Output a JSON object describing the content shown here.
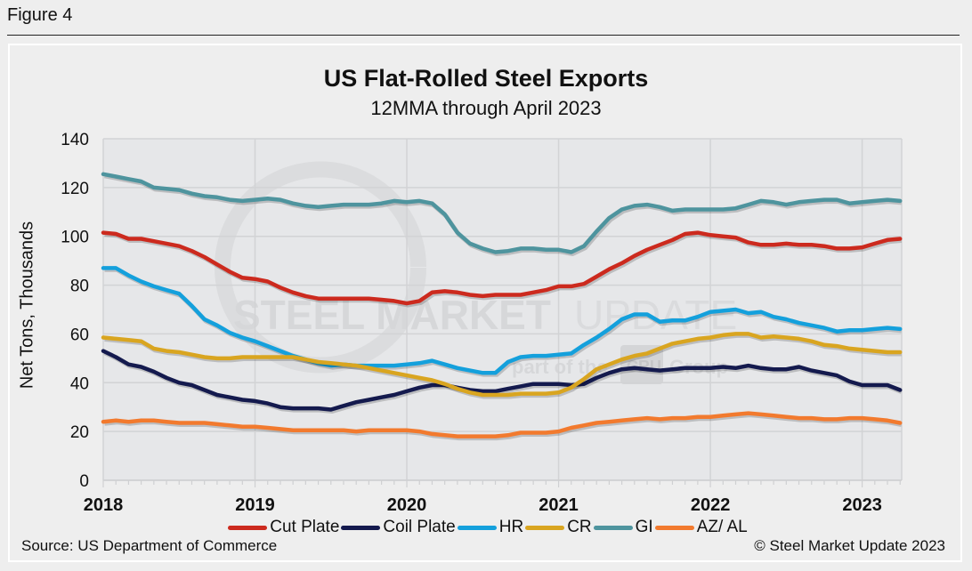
{
  "figure_label": "Figure 4",
  "source": "Source: US Department of Commerce",
  "copyright": "© Steel Market Update 2023",
  "watermark": {
    "main": "STEEL MARKET",
    "light": "UPDATE",
    "sub": "part of the",
    "badge": "CRU",
    "group": "Group"
  },
  "chart_data": {
    "type": "line",
    "title": "US Flat-Rolled Steel Exports",
    "subtitle": "12MMA through April 2023",
    "xlabel": "",
    "ylabel": "Net Tons, Thousands",
    "ylim": [
      0,
      140
    ],
    "yticks": [
      0,
      20,
      40,
      60,
      80,
      100,
      120,
      140
    ],
    "xtick_labels": [
      "2018",
      "2019",
      "2020",
      "2021",
      "2022",
      "2023"
    ],
    "x_start": "Jan 2018",
    "x_end": "Apr 2023",
    "frequency": "monthly",
    "grid": true,
    "legend_position": "bottom",
    "series": [
      {
        "name": "Cut Plate",
        "color": "#cc2a1e",
        "values": [
          101.5,
          101,
          99,
          99,
          98,
          97,
          96,
          94,
          91.5,
          88.5,
          85.5,
          83,
          82.5,
          81.5,
          79,
          77,
          75.5,
          74.5,
          74.5,
          74.5,
          74.5,
          74.5,
          74,
          73.5,
          72.5,
          73.5,
          77,
          77.5,
          77,
          76,
          75.5,
          76,
          76,
          76,
          77,
          78,
          79.5,
          79.5,
          80.5,
          83.5,
          86.5,
          89,
          92,
          94.5,
          96.5,
          98.5,
          101,
          101.5,
          100.5,
          100,
          99.5,
          97.5,
          96.5,
          96.5,
          97,
          96.5,
          96.5,
          96,
          95,
          95,
          95.5,
          97,
          98.5,
          99
        ]
      },
      {
        "name": "Coil Plate",
        "color": "#141a4e",
        "values": [
          53,
          50.5,
          47.5,
          46.5,
          44.5,
          42,
          40,
          39,
          37,
          35,
          34,
          33,
          32.5,
          31.5,
          30,
          29.5,
          29.5,
          29.5,
          29,
          30.5,
          32,
          33,
          34,
          35,
          36.5,
          38,
          39,
          39,
          38,
          37,
          36.5,
          36.5,
          37.5,
          38.5,
          39.5,
          39.5,
          39.5,
          39,
          39.5,
          42,
          44,
          45.5,
          46,
          45.5,
          45,
          45.5,
          46,
          46,
          46,
          46.5,
          46,
          47,
          46,
          45.5,
          45.5,
          46.5,
          45,
          44,
          43,
          40.5,
          39,
          39,
          39,
          37
        ]
      },
      {
        "name": "HR",
        "color": "#14a0dc",
        "values": [
          87,
          87,
          84,
          81.5,
          79.5,
          78,
          76.5,
          71.5,
          66,
          63.5,
          60.5,
          58.5,
          57,
          55,
          53,
          51,
          49.5,
          48,
          47,
          47.5,
          47,
          47,
          47,
          47,
          47.5,
          48,
          49,
          47.5,
          46,
          45,
          44,
          44,
          48.5,
          50.5,
          51,
          51,
          51.5,
          52,
          55.5,
          58.5,
          62,
          66,
          68,
          68,
          65,
          65.5,
          65.5,
          67,
          69,
          69.5,
          70,
          68.5,
          69,
          67,
          66,
          64.5,
          63.5,
          62.5,
          61,
          61.5,
          61.5,
          62,
          62.5,
          62
        ]
      },
      {
        "name": "CR",
        "color": "#d9a520",
        "values": [
          58.5,
          58,
          57.5,
          57,
          54,
          53,
          52.5,
          51.5,
          50.5,
          50,
          50,
          50.5,
          50.5,
          50.5,
          50.5,
          50.5,
          49.5,
          48.5,
          48,
          47.5,
          47,
          46,
          45,
          44,
          43,
          42,
          41,
          39.5,
          37.5,
          36,
          35,
          35,
          35,
          35.5,
          35.5,
          35.5,
          36,
          38,
          41.5,
          45.5,
          47.5,
          49.5,
          51,
          52,
          54,
          56,
          57,
          58,
          58.5,
          59.5,
          60,
          60,
          58.5,
          59,
          58.5,
          58,
          57,
          55.5,
          55,
          54,
          53.5,
          53,
          52.5,
          52.5
        ]
      },
      {
        "name": "GI",
        "color": "#4e949e",
        "values": [
          125.5,
          124.5,
          123.5,
          122.5,
          120,
          119.5,
          119,
          117.5,
          116.5,
          116,
          115,
          114.5,
          115,
          115.5,
          115,
          113.5,
          112.5,
          112,
          112.5,
          113,
          113,
          113,
          113.5,
          114.5,
          114,
          114.5,
          113.5,
          109,
          101.5,
          97,
          95,
          93.5,
          94,
          95,
          95,
          94.5,
          94.5,
          93.5,
          96,
          102,
          107.5,
          111,
          112.5,
          113,
          112,
          110.5,
          111,
          111,
          111,
          111,
          111.5,
          113,
          114.5,
          114,
          113,
          114,
          114.5,
          115,
          115,
          113.5,
          114,
          114.5,
          115,
          114.5
        ]
      },
      {
        "name": "AZ/ AL",
        "color": "#f27a2e",
        "values": [
          24,
          24.5,
          24,
          24.5,
          24.5,
          24,
          23.5,
          23.5,
          23.5,
          23,
          22.5,
          22,
          22,
          21.5,
          21,
          20.5,
          20.5,
          20.5,
          20.5,
          20.5,
          20,
          20.5,
          20.5,
          20.5,
          20.5,
          20,
          19,
          18.5,
          18,
          18,
          18,
          18,
          18.5,
          19.5,
          19.5,
          19.5,
          20,
          21.5,
          22.5,
          23.5,
          24,
          24.5,
          25,
          25.5,
          25,
          25.5,
          25.5,
          26,
          26,
          26.5,
          27,
          27.5,
          27,
          26.5,
          26,
          25.5,
          25.5,
          25,
          25,
          25.5,
          25.5,
          25,
          24.5,
          23.5
        ]
      }
    ]
  }
}
